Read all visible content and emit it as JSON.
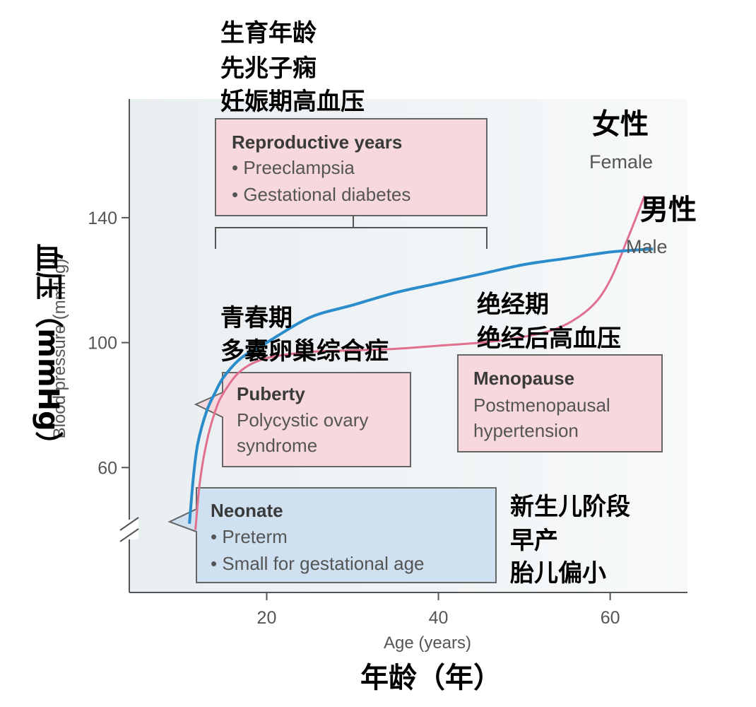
{
  "chart_data": {
    "type": "line",
    "xlabel": "Age (years)",
    "ylabel": "Blood pressure (mmHg)",
    "xlabel_zh": "年龄（年）",
    "ylabel_zh": "血压（mmHg）",
    "xticks": [
      20,
      40,
      60
    ],
    "yticks": [
      60,
      100,
      140
    ],
    "xlim": [
      4,
      69
    ],
    "ylim": [
      20,
      178
    ],
    "axis_break": true,
    "grid": false,
    "series": [
      {
        "name": "Male",
        "name_zh": "男性",
        "color": "#2b8ccc",
        "x": [
          11,
          11.5,
          12,
          13,
          14,
          15,
          17,
          20,
          25,
          30,
          35,
          40,
          45,
          50,
          55,
          60,
          65
        ],
        "y": [
          42,
          58,
          68,
          78,
          84,
          89,
          95,
          100,
          108,
          112,
          116,
          119,
          122,
          125,
          127,
          129,
          130
        ]
      },
      {
        "name": "Female",
        "name_zh": "女性",
        "color": "#e0708e",
        "x": [
          11.7,
          12.2,
          13,
          14,
          15,
          17,
          20,
          25,
          30,
          35,
          40,
          45,
          48,
          52,
          55,
          58,
          60,
          62,
          64
        ],
        "y": [
          40,
          55,
          68,
          78,
          84,
          91,
          95,
          97,
          97.5,
          98,
          99,
          100,
          101,
          103,
          106,
          112,
          120,
          133,
          147
        ]
      }
    ],
    "annotations": {
      "reproductive": {
        "zh": [
          "生育年龄",
          "先兆子痫",
          "妊娠期高血压"
        ],
        "title": "Reproductive years",
        "items": [
          "• Preeclampsia",
          "• Gestational diabetes"
        ],
        "color": "#f6d8dd"
      },
      "puberty": {
        "zh": [
          "青春期",
          "多囊卵巢综合症"
        ],
        "title": "Puberty",
        "items": [
          "Polycystic ovary",
          "syndrome"
        ],
        "color": "#f6d8dd"
      },
      "menopause": {
        "zh": [
          "绝经期",
          "绝经后高血压"
        ],
        "title": "Menopause",
        "items": [
          "Postmenopausal",
          "hypertension"
        ],
        "color": "#f6d8dd"
      },
      "neonate": {
        "zh": [
          "新生儿阶段",
          "早产",
          "胎儿偏小"
        ],
        "title": "Neonate",
        "items": [
          "• Preterm",
          "• Small for gestational age"
        ],
        "color": "#cfe0f0"
      }
    }
  }
}
